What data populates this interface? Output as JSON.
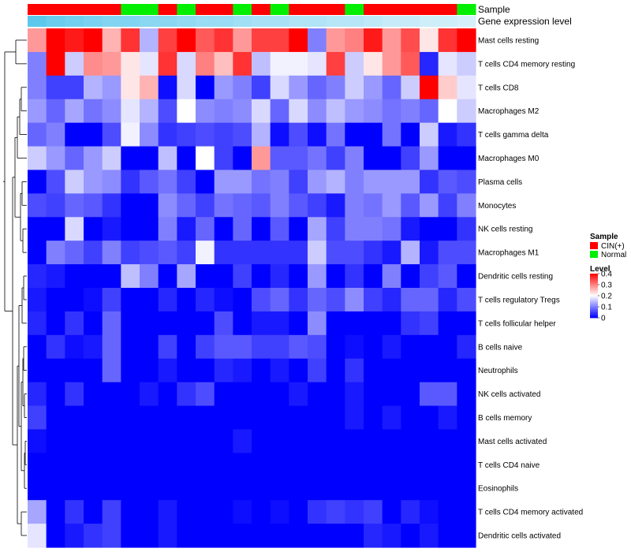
{
  "chart_data": {
    "type": "heatmap",
    "title": "",
    "annotation_rows": [
      {
        "name": "Sample",
        "label": "Sample"
      },
      {
        "name": "Gene expression level",
        "label": "Gene expression level"
      }
    ],
    "sample_groups": [
      "CIN(+)",
      "CIN(+)",
      "CIN(+)",
      "CIN(+)",
      "CIN(+)",
      "Normal",
      "Normal",
      "CIN(+)",
      "Normal",
      "CIN(+)",
      "CIN(+)",
      "Normal",
      "CIN(+)",
      "Normal",
      "CIN(+)",
      "CIN(+)",
      "CIN(+)",
      "Normal",
      "CIN(+)",
      "CIN(+)",
      "CIN(+)",
      "CIN(+)",
      "CIN(+)",
      "Normal"
    ],
    "expression_level": [
      0.2,
      0.18,
      0.17,
      0.16,
      0.15,
      0.15,
      0.14,
      0.14,
      0.13,
      0.12,
      0.12,
      0.11,
      0.1,
      0.1,
      0.09,
      0.09,
      0.08,
      0.08,
      0.07,
      0.06,
      0.06,
      0.05,
      0.05,
      0.04
    ],
    "rows": [
      "Mast cells resting",
      "T cells CD4 memory resting",
      "T cells CD8",
      "Macrophages M2",
      "T cells gamma delta",
      "Macrophages M0",
      "Plasma cells",
      "Monocytes",
      "NK cells resting",
      "Macrophages M1",
      "Dendritic cells resting",
      "T cells regulatory  Tregs",
      "T cells follicular helper",
      "B cells naive",
      "Neutrophils",
      "NK cells activated",
      "B cells memory",
      "Mast cells activated",
      "T cells CD4 naive",
      "Eosinophils",
      "T cells CD4 memory activated",
      "Dendritic cells activated"
    ],
    "values": [
      [
        0.28,
        0.4,
        0.38,
        0.4,
        0.26,
        0.36,
        0.14,
        0.35,
        0.4,
        0.33,
        0.36,
        0.28,
        0.35,
        0.35,
        0.4,
        0.1,
        0.28,
        0.3,
        0.38,
        0.28,
        0.34,
        0.22,
        0.36,
        0.4
      ],
      [
        0.1,
        0.4,
        0.16,
        0.29,
        0.28,
        0.22,
        0.18,
        0.36,
        0.17,
        0.3,
        0.25,
        0.36,
        0.15,
        0.19,
        0.19,
        0.18,
        0.35,
        0.16,
        0.22,
        0.28,
        0.33,
        0.03,
        0.18,
        0.16
      ],
      [
        0.1,
        0.05,
        0.05,
        0.14,
        0.12,
        0.22,
        0.26,
        0.01,
        0.17,
        0.0,
        0.12,
        0.1,
        0.05,
        0.17,
        0.12,
        0.08,
        0.1,
        0.16,
        0.12,
        0.08,
        0.16,
        0.4,
        0.24,
        0.18
      ],
      [
        0.12,
        0.08,
        0.13,
        0.09,
        0.11,
        0.18,
        0.14,
        0.06,
        0.2,
        0.11,
        0.1,
        0.11,
        0.17,
        0.08,
        0.17,
        0.11,
        0.15,
        0.12,
        0.11,
        0.09,
        0.1,
        0.08,
        0.2,
        0.16
      ],
      [
        0.08,
        0.1,
        0.0,
        0.0,
        0.06,
        0.19,
        0.11,
        0.04,
        0.05,
        0.06,
        0.05,
        0.06,
        0.14,
        0.01,
        0.06,
        0.01,
        0.09,
        0.0,
        0.0,
        0.09,
        0.0,
        0.16,
        0.02,
        0.04
      ],
      [
        0.16,
        0.12,
        0.08,
        0.12,
        0.16,
        0.0,
        0.0,
        0.15,
        0.0,
        0.2,
        0.05,
        0.0,
        0.28,
        0.07,
        0.07,
        0.09,
        0.05,
        0.1,
        0.0,
        0.0,
        0.05,
        0.12,
        0.0,
        0.0
      ],
      [
        0.0,
        0.06,
        0.16,
        0.12,
        0.11,
        0.04,
        0.07,
        0.09,
        0.05,
        0.0,
        0.12,
        0.12,
        0.09,
        0.1,
        0.05,
        0.12,
        0.14,
        0.1,
        0.12,
        0.12,
        0.12,
        0.04,
        0.07,
        0.06
      ],
      [
        0.06,
        0.05,
        0.08,
        0.07,
        0.04,
        0.0,
        0.0,
        0.11,
        0.08,
        0.05,
        0.09,
        0.08,
        0.07,
        0.1,
        0.07,
        0.05,
        0.02,
        0.1,
        0.09,
        0.12,
        0.07,
        0.12,
        0.05,
        0.1
      ],
      [
        0.0,
        0.0,
        0.17,
        0.0,
        0.02,
        0.0,
        0.0,
        0.1,
        0.02,
        0.08,
        0.0,
        0.08,
        0.0,
        0.07,
        0.0,
        0.13,
        0.05,
        0.1,
        0.1,
        0.09,
        0.02,
        0.0,
        0.0,
        0.04
      ],
      [
        0.0,
        0.1,
        0.08,
        0.05,
        0.1,
        0.05,
        0.06,
        0.07,
        0.05,
        0.19,
        0.04,
        0.04,
        0.04,
        0.04,
        0.04,
        0.16,
        0.06,
        0.06,
        0.04,
        0.02,
        0.14,
        0.02,
        0.06,
        0.06
      ],
      [
        0.03,
        0.02,
        0.0,
        0.0,
        0.0,
        0.15,
        0.1,
        0.0,
        0.13,
        0.0,
        0.0,
        0.05,
        0.0,
        0.03,
        0.0,
        0.12,
        0.0,
        0.04,
        0.0,
        0.1,
        0.0,
        0.05,
        0.07,
        0.0
      ],
      [
        0.02,
        0.0,
        0.0,
        0.01,
        0.05,
        0.0,
        0.0,
        0.03,
        0.0,
        0.03,
        0.01,
        0.0,
        0.06,
        0.08,
        0.04,
        0.08,
        0.06,
        0.11,
        0.05,
        0.03,
        0.08,
        0.08,
        0.03,
        0.06
      ],
      [
        0.03,
        0.0,
        0.04,
        0.0,
        0.08,
        0.0,
        0.0,
        0.0,
        0.0,
        0.0,
        0.06,
        0.0,
        0.02,
        0.02,
        0.0,
        0.11,
        0.0,
        0.0,
        0.0,
        0.0,
        0.04,
        0.05,
        0.0,
        0.0
      ],
      [
        0.0,
        0.04,
        0.01,
        0.02,
        0.08,
        0.0,
        0.0,
        0.05,
        0.0,
        0.05,
        0.07,
        0.07,
        0.05,
        0.05,
        0.07,
        0.06,
        0.0,
        0.01,
        0.0,
        0.02,
        0.0,
        0.0,
        0.0,
        0.03
      ],
      [
        0.0,
        0.0,
        0.0,
        0.0,
        0.08,
        0.0,
        0.0,
        0.02,
        0.0,
        0.0,
        0.03,
        0.02,
        0.0,
        0.02,
        0.0,
        0.05,
        0.0,
        0.04,
        0.0,
        0.0,
        0.0,
        0.0,
        0.0,
        0.0
      ],
      [
        0.03,
        0.0,
        0.04,
        0.0,
        0.0,
        0.0,
        0.02,
        0.0,
        0.04,
        0.06,
        0.0,
        0.0,
        0.0,
        0.0,
        0.02,
        0.0,
        0.0,
        0.02,
        0.0,
        0.0,
        0.0,
        0.07,
        0.07,
        0.0
      ],
      [
        0.05,
        0.0,
        0.0,
        0.0,
        0.0,
        0.0,
        0.0,
        0.0,
        0.0,
        0.0,
        0.0,
        0.0,
        0.0,
        0.0,
        0.0,
        0.0,
        0.0,
        0.02,
        0.0,
        0.02,
        0.0,
        0.0,
        0.02,
        0.0
      ],
      [
        0.01,
        0.0,
        0.0,
        0.0,
        0.0,
        0.0,
        0.0,
        0.0,
        0.0,
        0.0,
        0.0,
        0.02,
        0.0,
        0.0,
        0.0,
        0.0,
        0.0,
        0.0,
        0.0,
        0.0,
        0.0,
        0.0,
        0.0,
        0.0
      ],
      [
        0.0,
        0.0,
        0.0,
        0.0,
        0.0,
        0.0,
        0.0,
        0.0,
        0.0,
        0.0,
        0.0,
        0.0,
        0.0,
        0.0,
        0.0,
        0.0,
        0.0,
        0.0,
        0.0,
        0.0,
        0.0,
        0.0,
        0.0,
        0.0
      ],
      [
        0.0,
        0.0,
        0.0,
        0.0,
        0.0,
        0.0,
        0.0,
        0.0,
        0.0,
        0.0,
        0.0,
        0.0,
        0.0,
        0.0,
        0.0,
        0.0,
        0.0,
        0.0,
        0.0,
        0.0,
        0.0,
        0.0,
        0.0,
        0.0
      ],
      [
        0.13,
        0.0,
        0.04,
        0.0,
        0.05,
        0.0,
        0.0,
        0.02,
        0.0,
        0.0,
        0.0,
        0.01,
        0.0,
        0.01,
        0.0,
        0.04,
        0.05,
        0.04,
        0.05,
        0.0,
        0.03,
        0.01,
        0.0,
        0.0
      ],
      [
        0.18,
        0.0,
        0.02,
        0.04,
        0.05,
        0.0,
        0.0,
        0.02,
        0.0,
        0.0,
        0.0,
        0.0,
        0.0,
        0.0,
        0.0,
        0.0,
        0.0,
        0.0,
        0.03,
        0.02,
        0.0,
        0.02,
        0.0,
        0.0
      ]
    ],
    "color_scale": {
      "min": 0,
      "max": 0.4,
      "low_color": "#0000ff",
      "mid_color": "#ffffff",
      "high_color": "#ff0000",
      "mid_value": 0.2
    },
    "legend": {
      "sample": {
        "title": "Sample",
        "entries": [
          {
            "label": "CIN(+)",
            "color": "#ff0000"
          },
          {
            "label": "Normal",
            "color": "#00ee00"
          }
        ]
      },
      "level": {
        "title": "Level",
        "ticks": [
          "0.4",
          "0.3",
          "0.2",
          "0.1",
          "0"
        ],
        "tick_values": [
          0.4,
          0.3,
          0.2,
          0.1,
          0.0
        ]
      }
    },
    "group_colors": {
      "CIN(+)": "#ff0000",
      "Normal": "#00ee00"
    },
    "expression_colors": {
      "low": "#d6f0fa",
      "high": "#5bc8ec"
    }
  }
}
